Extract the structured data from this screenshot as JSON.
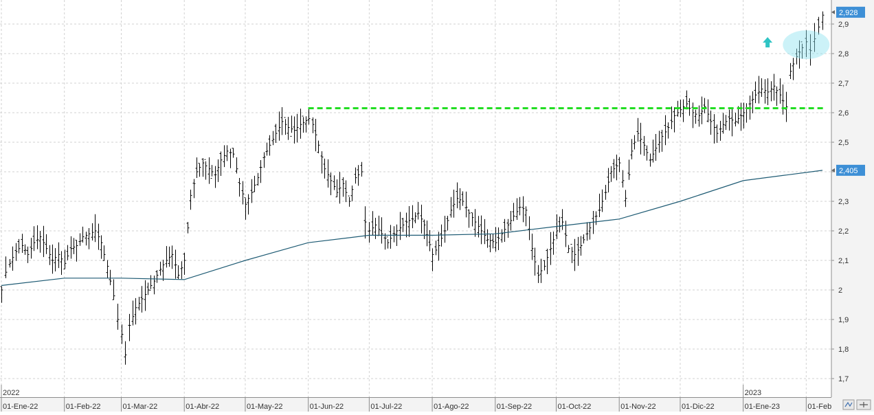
{
  "chart_data": {
    "type": "ohlc",
    "title": "",
    "xlabel": "",
    "ylabel": "",
    "ylim": [
      1.65,
      2.95
    ],
    "y_ticks": [
      "1,7",
      "1,8",
      "1,9",
      "2",
      "2,1",
      "2,2",
      "2,3",
      "2,4",
      "2,5",
      "2,6",
      "2,7",
      "2,8",
      "2,9"
    ],
    "x_ticks": [
      "01-Ene-22",
      "01-Feb-22",
      "01-Mar-22",
      "01-Abr-22",
      "01-May-22",
      "01-Jun-22",
      "01-Jul-22",
      "01-Ago-22",
      "01-Sep-22",
      "01-Oct-22",
      "01-Nov-22",
      "01-Dic-22",
      "01-Ene-23",
      "01-Feb"
    ],
    "year_labels": [
      "2022",
      "2023"
    ],
    "grid": true,
    "last_price_label": "2,928",
    "moving_average_label": "2,405",
    "resistance_level": 2.615,
    "series": [
      {
        "kind": "closes",
        "points": [
          [
            "01-Ene-22",
            2.0
          ],
          [
            "03-Ene-22",
            2.06
          ],
          [
            "05-Ene-22",
            2.09
          ],
          [
            "08-Ene-22",
            2.13
          ],
          [
            "11-Ene-22",
            2.15
          ],
          [
            "14-Ene-22",
            2.12
          ],
          [
            "17-Ene-22",
            2.16
          ],
          [
            "20-Ene-22",
            2.18
          ],
          [
            "23-Ene-22",
            2.14
          ],
          [
            "26-Ene-22",
            2.1
          ],
          [
            "29-Ene-22",
            2.12
          ],
          [
            "01-Feb-22",
            2.09
          ],
          [
            "04-Feb-22",
            2.14
          ],
          [
            "07-Feb-22",
            2.15
          ],
          [
            "10-Feb-22",
            2.18
          ],
          [
            "13-Feb-22",
            2.19
          ],
          [
            "16-Feb-22",
            2.2
          ],
          [
            "19-Feb-22",
            2.16
          ],
          [
            "22-Feb-22",
            2.08
          ],
          [
            "25-Feb-22",
            1.98
          ],
          [
            "27-Feb-22",
            1.9
          ],
          [
            "01-Mar-22",
            1.85
          ],
          [
            "03-Mar-22",
            1.78
          ],
          [
            "05-Mar-22",
            1.88
          ],
          [
            "08-Mar-22",
            1.94
          ],
          [
            "11-Mar-22",
            1.97
          ],
          [
            "14-Mar-22",
            2.0
          ],
          [
            "17-Mar-22",
            2.03
          ],
          [
            "20-Mar-22",
            2.07
          ],
          [
            "23-Mar-22",
            2.1
          ],
          [
            "26-Mar-22",
            2.12
          ],
          [
            "29-Mar-22",
            2.05
          ],
          [
            "01-Abr-22",
            2.1
          ],
          [
            "04-Abr-22",
            2.32
          ],
          [
            "07-Abr-22",
            2.4
          ],
          [
            "10-Abr-22",
            2.43
          ],
          [
            "13-Abr-22",
            2.41
          ],
          [
            "16-Abr-22",
            2.39
          ],
          [
            "19-Abr-22",
            2.44
          ],
          [
            "22-Abr-22",
            2.47
          ],
          [
            "25-Abr-22",
            2.46
          ],
          [
            "28-Abr-22",
            2.36
          ],
          [
            "01-May-22",
            2.29
          ],
          [
            "04-May-22",
            2.33
          ],
          [
            "07-May-22",
            2.38
          ],
          [
            "10-May-22",
            2.45
          ],
          [
            "13-May-22",
            2.49
          ],
          [
            "16-May-22",
            2.53
          ],
          [
            "19-May-22",
            2.57
          ],
          [
            "22-May-22",
            2.55
          ],
          [
            "25-May-22",
            2.54
          ],
          [
            "28-May-22",
            2.56
          ],
          [
            "01-Jun-22",
            2.58
          ],
          [
            "03-Jun-22",
            2.56
          ],
          [
            "06-Jun-22",
            2.49
          ],
          [
            "09-Jun-22",
            2.41
          ],
          [
            "12-Jun-22",
            2.37
          ],
          [
            "15-Jun-22",
            2.33
          ],
          [
            "18-Jun-22",
            2.36
          ],
          [
            "21-Jun-22",
            2.3
          ],
          [
            "24-Jun-22",
            2.38
          ],
          [
            "27-Jun-22",
            2.4
          ],
          [
            "29-Jun-22",
            2.23
          ],
          [
            "01-Jul-22",
            2.2
          ],
          [
            "04-Jul-22",
            2.22
          ],
          [
            "07-Jul-22",
            2.19
          ],
          [
            "10-Jul-22",
            2.16
          ],
          [
            "13-Jul-22",
            2.19
          ],
          [
            "16-Jul-22",
            2.21
          ],
          [
            "19-Jul-22",
            2.23
          ],
          [
            "22-Jul-22",
            2.24
          ],
          [
            "25-Jul-22",
            2.26
          ],
          [
            "28-Jul-22",
            2.22
          ],
          [
            "01-Ago-22",
            2.12
          ],
          [
            "04-Ago-22",
            2.15
          ],
          [
            "07-Ago-22",
            2.2
          ],
          [
            "10-Ago-22",
            2.27
          ],
          [
            "13-Ago-22",
            2.31
          ],
          [
            "16-Ago-22",
            2.3
          ],
          [
            "19-Ago-22",
            2.26
          ],
          [
            "22-Ago-22",
            2.23
          ],
          [
            "25-Ago-22",
            2.2
          ],
          [
            "28-Ago-22",
            2.17
          ],
          [
            "01-Sep-22",
            2.16
          ],
          [
            "04-Sep-22",
            2.19
          ],
          [
            "07-Sep-22",
            2.22
          ],
          [
            "10-Sep-22",
            2.25
          ],
          [
            "13-Sep-22",
            2.28
          ],
          [
            "16-Sep-22",
            2.27
          ],
          [
            "19-Sep-22",
            2.14
          ],
          [
            "22-Sep-22",
            2.05
          ],
          [
            "25-Sep-22",
            2.08
          ],
          [
            "28-Sep-22",
            2.14
          ],
          [
            "01-Oct-22",
            2.2
          ],
          [
            "04-Oct-22",
            2.23
          ],
          [
            "07-Oct-22",
            2.14
          ],
          [
            "10-Oct-22",
            2.12
          ],
          [
            "13-Oct-22",
            2.15
          ],
          [
            "16-Oct-22",
            2.19
          ],
          [
            "19-Oct-22",
            2.23
          ],
          [
            "22-Oct-22",
            2.27
          ],
          [
            "25-Oct-22",
            2.33
          ],
          [
            "28-Oct-22",
            2.4
          ],
          [
            "01-Nov-22",
            2.43
          ],
          [
            "04-Nov-22",
            2.31
          ],
          [
            "07-Nov-22",
            2.47
          ],
          [
            "10-Nov-22",
            2.53
          ],
          [
            "13-Nov-22",
            2.49
          ],
          [
            "16-Nov-22",
            2.44
          ],
          [
            "19-Nov-22",
            2.48
          ],
          [
            "22-Nov-22",
            2.52
          ],
          [
            "25-Nov-22",
            2.55
          ],
          [
            "28-Nov-22",
            2.59
          ],
          [
            "01-Dic-22",
            2.61
          ],
          [
            "04-Dic-22",
            2.63
          ],
          [
            "07-Dic-22",
            2.6
          ],
          [
            "10-Dic-22",
            2.59
          ],
          [
            "13-Dic-22",
            2.62
          ],
          [
            "16-Dic-22",
            2.57
          ],
          [
            "19-Dic-22",
            2.53
          ],
          [
            "22-Dic-22",
            2.56
          ],
          [
            "25-Dic-22",
            2.58
          ],
          [
            "28-Dic-22",
            2.57
          ],
          [
            "01-Ene-23",
            2.6
          ],
          [
            "04-Ene-23",
            2.63
          ],
          [
            "07-Ene-23",
            2.66
          ],
          [
            "10-Ene-23",
            2.68
          ],
          [
            "13-Ene-23",
            2.67
          ],
          [
            "16-Ene-23",
            2.69
          ],
          [
            "19-Ene-23",
            2.66
          ],
          [
            "22-Ene-23",
            2.62
          ],
          [
            "24-Ene-23",
            2.74
          ],
          [
            "27-Ene-23",
            2.79
          ],
          [
            "30-Ene-23",
            2.82
          ],
          [
            "01-Feb-23",
            2.84
          ],
          [
            "03-Feb-23",
            2.81
          ],
          [
            "05-Feb-23",
            2.85
          ],
          [
            "07-Feb-23",
            2.89
          ],
          [
            "09-Feb-23",
            2.93
          ]
        ]
      },
      {
        "kind": "moving_average",
        "points": [
          [
            "01-Ene-22",
            2.015
          ],
          [
            "01-Feb-22",
            2.04
          ],
          [
            "01-Mar-22",
            2.04
          ],
          [
            "01-Abr-22",
            2.035
          ],
          [
            "01-May-22",
            2.1
          ],
          [
            "01-Jun-22",
            2.16
          ],
          [
            "01-Jul-22",
            2.185
          ],
          [
            "01-Ago-22",
            2.185
          ],
          [
            "01-Sep-22",
            2.19
          ],
          [
            "01-Oct-22",
            2.215
          ],
          [
            "01-Nov-22",
            2.24
          ],
          [
            "01-Dic-22",
            2.3
          ],
          [
            "01-Ene-23",
            2.37
          ],
          [
            "09-Feb-23",
            2.405
          ]
        ]
      }
    ]
  }
}
